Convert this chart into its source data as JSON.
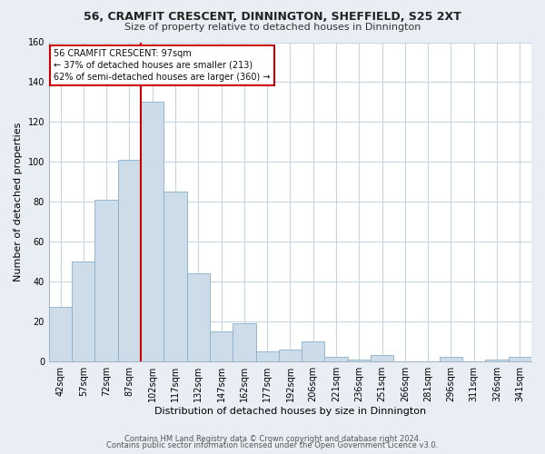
{
  "title": "56, CRAMFIT CRESCENT, DINNINGTON, SHEFFIELD, S25 2XT",
  "subtitle": "Size of property relative to detached houses in Dinnington",
  "xlabel": "Distribution of detached houses by size in Dinnington",
  "ylabel": "Number of detached properties",
  "bar_labels": [
    "42sqm",
    "57sqm",
    "72sqm",
    "87sqm",
    "102sqm",
    "117sqm",
    "132sqm",
    "147sqm",
    "162sqm",
    "177sqm",
    "192sqm",
    "206sqm",
    "221sqm",
    "236sqm",
    "251sqm",
    "266sqm",
    "281sqm",
    "296sqm",
    "311sqm",
    "326sqm",
    "341sqm"
  ],
  "bar_heights": [
    27,
    50,
    81,
    101,
    130,
    85,
    44,
    15,
    19,
    5,
    6,
    10,
    2,
    1,
    3,
    0,
    0,
    2,
    0,
    1,
    2
  ],
  "bar_color": "#ccdce8",
  "bar_edge_color": "#8aaec8",
  "vline_color": "#cc0000",
  "vline_index": 4,
  "ylim": [
    0,
    160
  ],
  "yticks": [
    0,
    20,
    40,
    60,
    80,
    100,
    120,
    140,
    160
  ],
  "annotation_text_line1": "56 CRAMFIT CRESCENT: 97sqm",
  "annotation_text_line2": "← 37% of detached houses are smaller (213)",
  "annotation_text_line3": "62% of semi-detached houses are larger (360) →",
  "annotation_box_facecolor": "#ffffff",
  "annotation_box_edgecolor": "#cc0000",
  "footer_line1": "Contains HM Land Registry data © Crown copyright and database right 2024.",
  "footer_line2": "Contains public sector information licensed under the Open Government Licence v3.0.",
  "background_color": "#e8eef4",
  "plot_background_color": "#ffffff",
  "grid_color": "#c8d4e0",
  "spine_color": "#a0b4c4",
  "title_fontsize": 9,
  "subtitle_fontsize": 8,
  "tick_fontsize": 7,
  "ylabel_fontsize": 8,
  "xlabel_fontsize": 8,
  "footer_fontsize": 6
}
